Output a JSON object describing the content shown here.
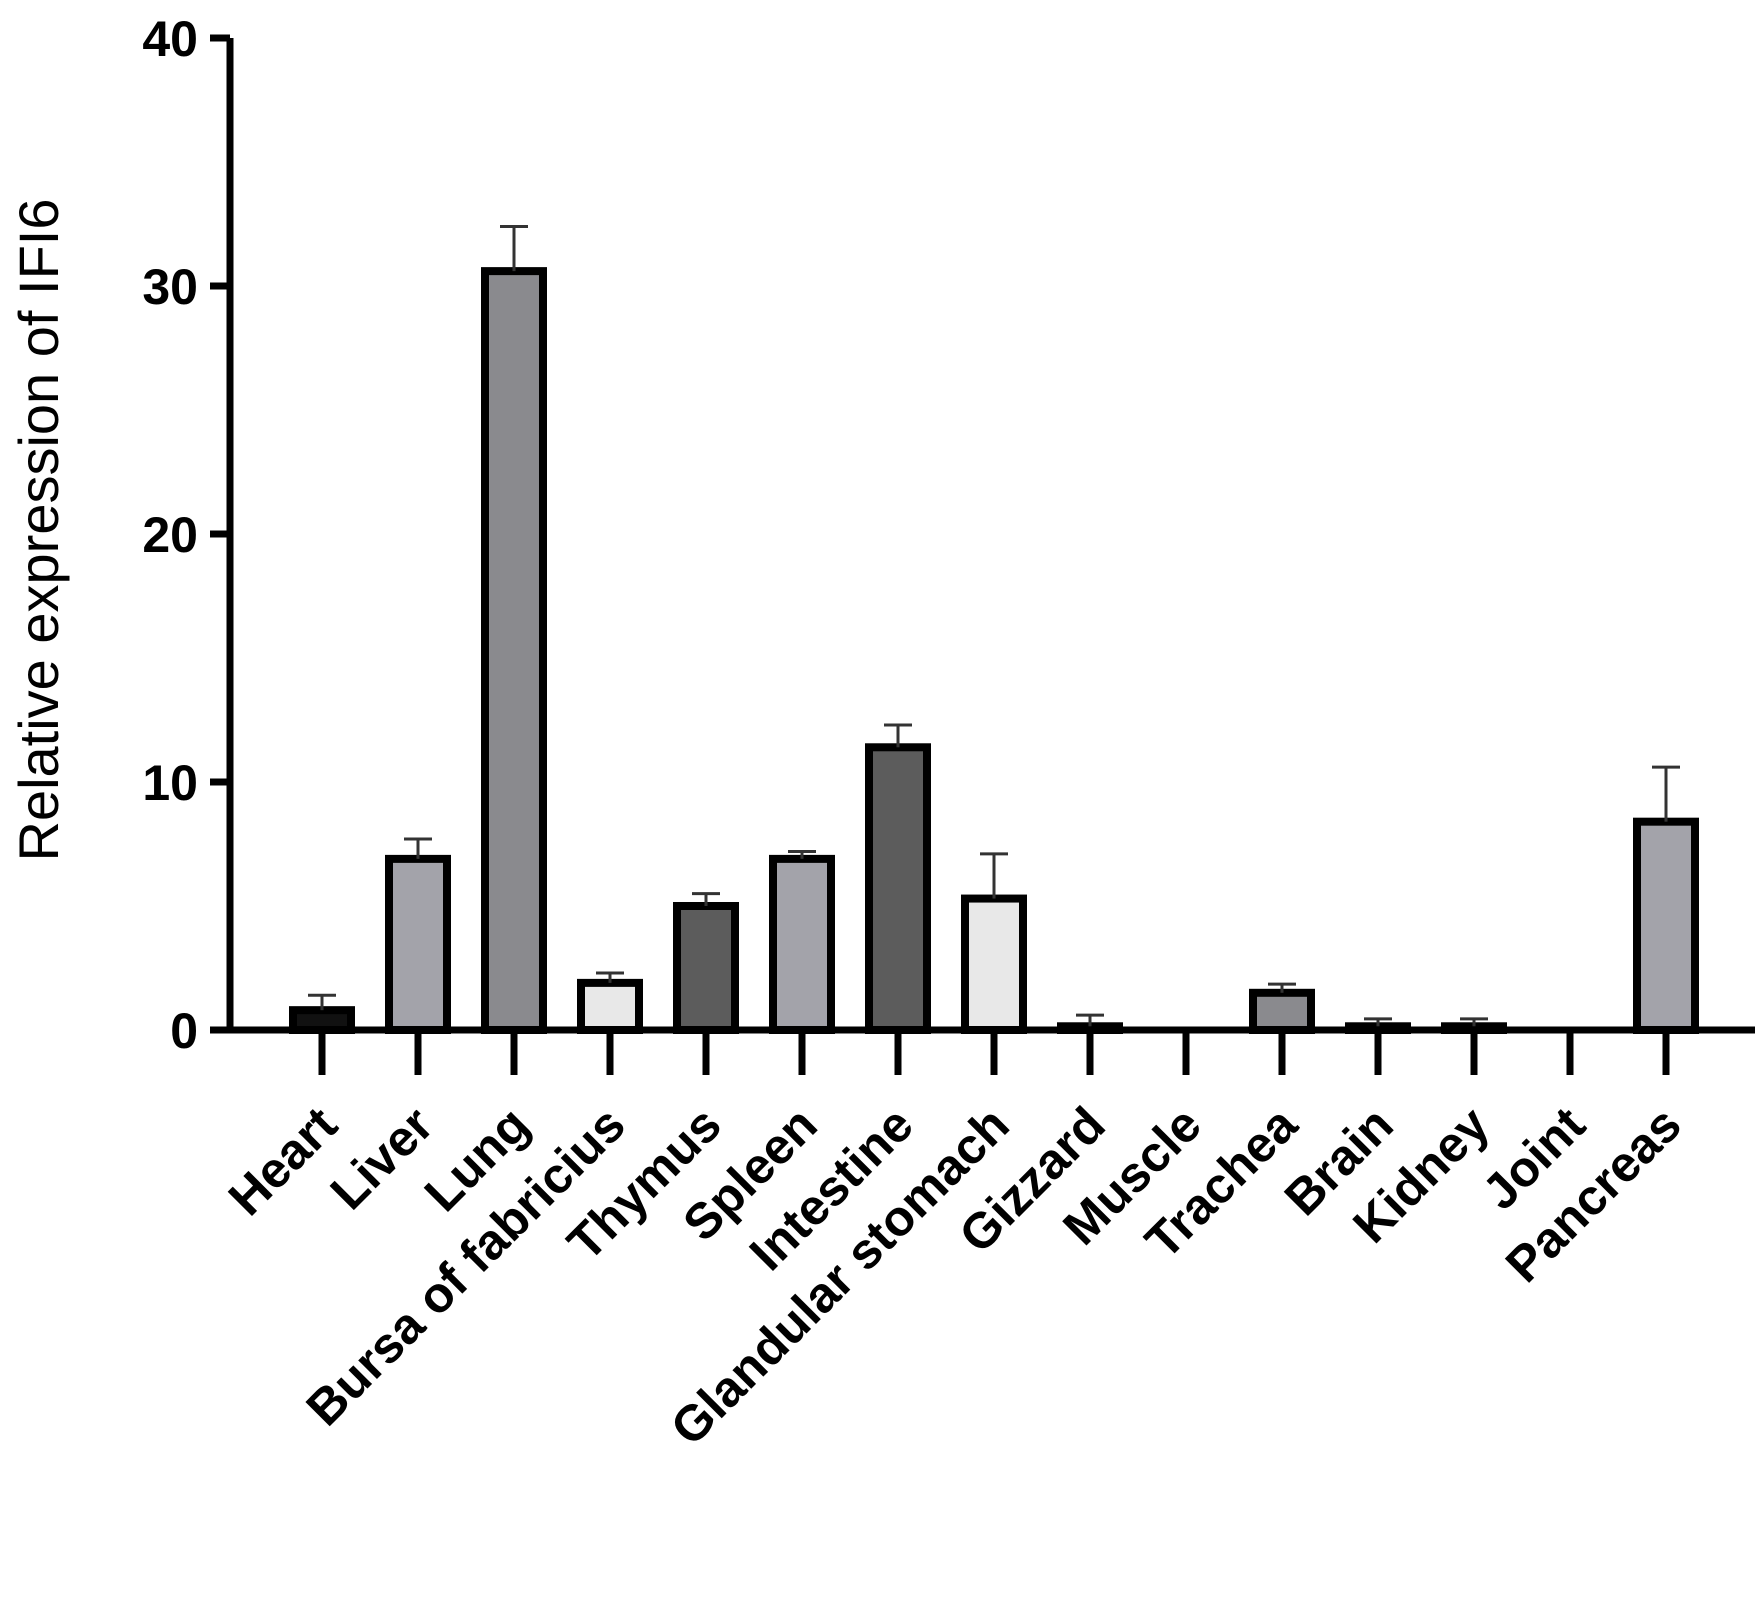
{
  "chart_data": {
    "type": "bar",
    "title": "",
    "xlabel": "",
    "ylabel": "Relative expression of IFI6",
    "ylim": [
      0,
      40
    ],
    "yticks": [
      0,
      10,
      20,
      30,
      40
    ],
    "grid": false,
    "categories": [
      "Heart",
      "Liver",
      "Lung",
      "Bursa of fabricius",
      "Thymus",
      "Spleen",
      "Intestine",
      "Glandular stomach",
      "Gizzard",
      "Muscle",
      "Trachea",
      "Brain",
      "Kidney",
      "Joint",
      "Pancreas"
    ],
    "values": [
      0.8,
      6.9,
      30.6,
      1.9,
      5.0,
      6.9,
      11.4,
      5.3,
      0.15,
      0.0,
      1.5,
      0.15,
      0.15,
      0.0,
      8.4
    ],
    "errors": [
      0.6,
      0.8,
      1.8,
      0.4,
      0.5,
      0.3,
      0.9,
      1.8,
      0.45,
      0.0,
      0.35,
      0.3,
      0.3,
      0.0,
      2.2
    ],
    "bar_fill_colors": [
      "#111111",
      "#a3a3aa",
      "#8a8a8e",
      "#e8e8e8",
      "#5c5c5c",
      "#a3a3aa",
      "#5c5c5c",
      "#e8e8e8",
      "#a3a3aa",
      "#a3a3aa",
      "#8a8a8e",
      "#a3a3aa",
      "#a3a3aa",
      "#a3a3aa",
      "#a3a3aa"
    ],
    "outline_color": "#000000"
  }
}
